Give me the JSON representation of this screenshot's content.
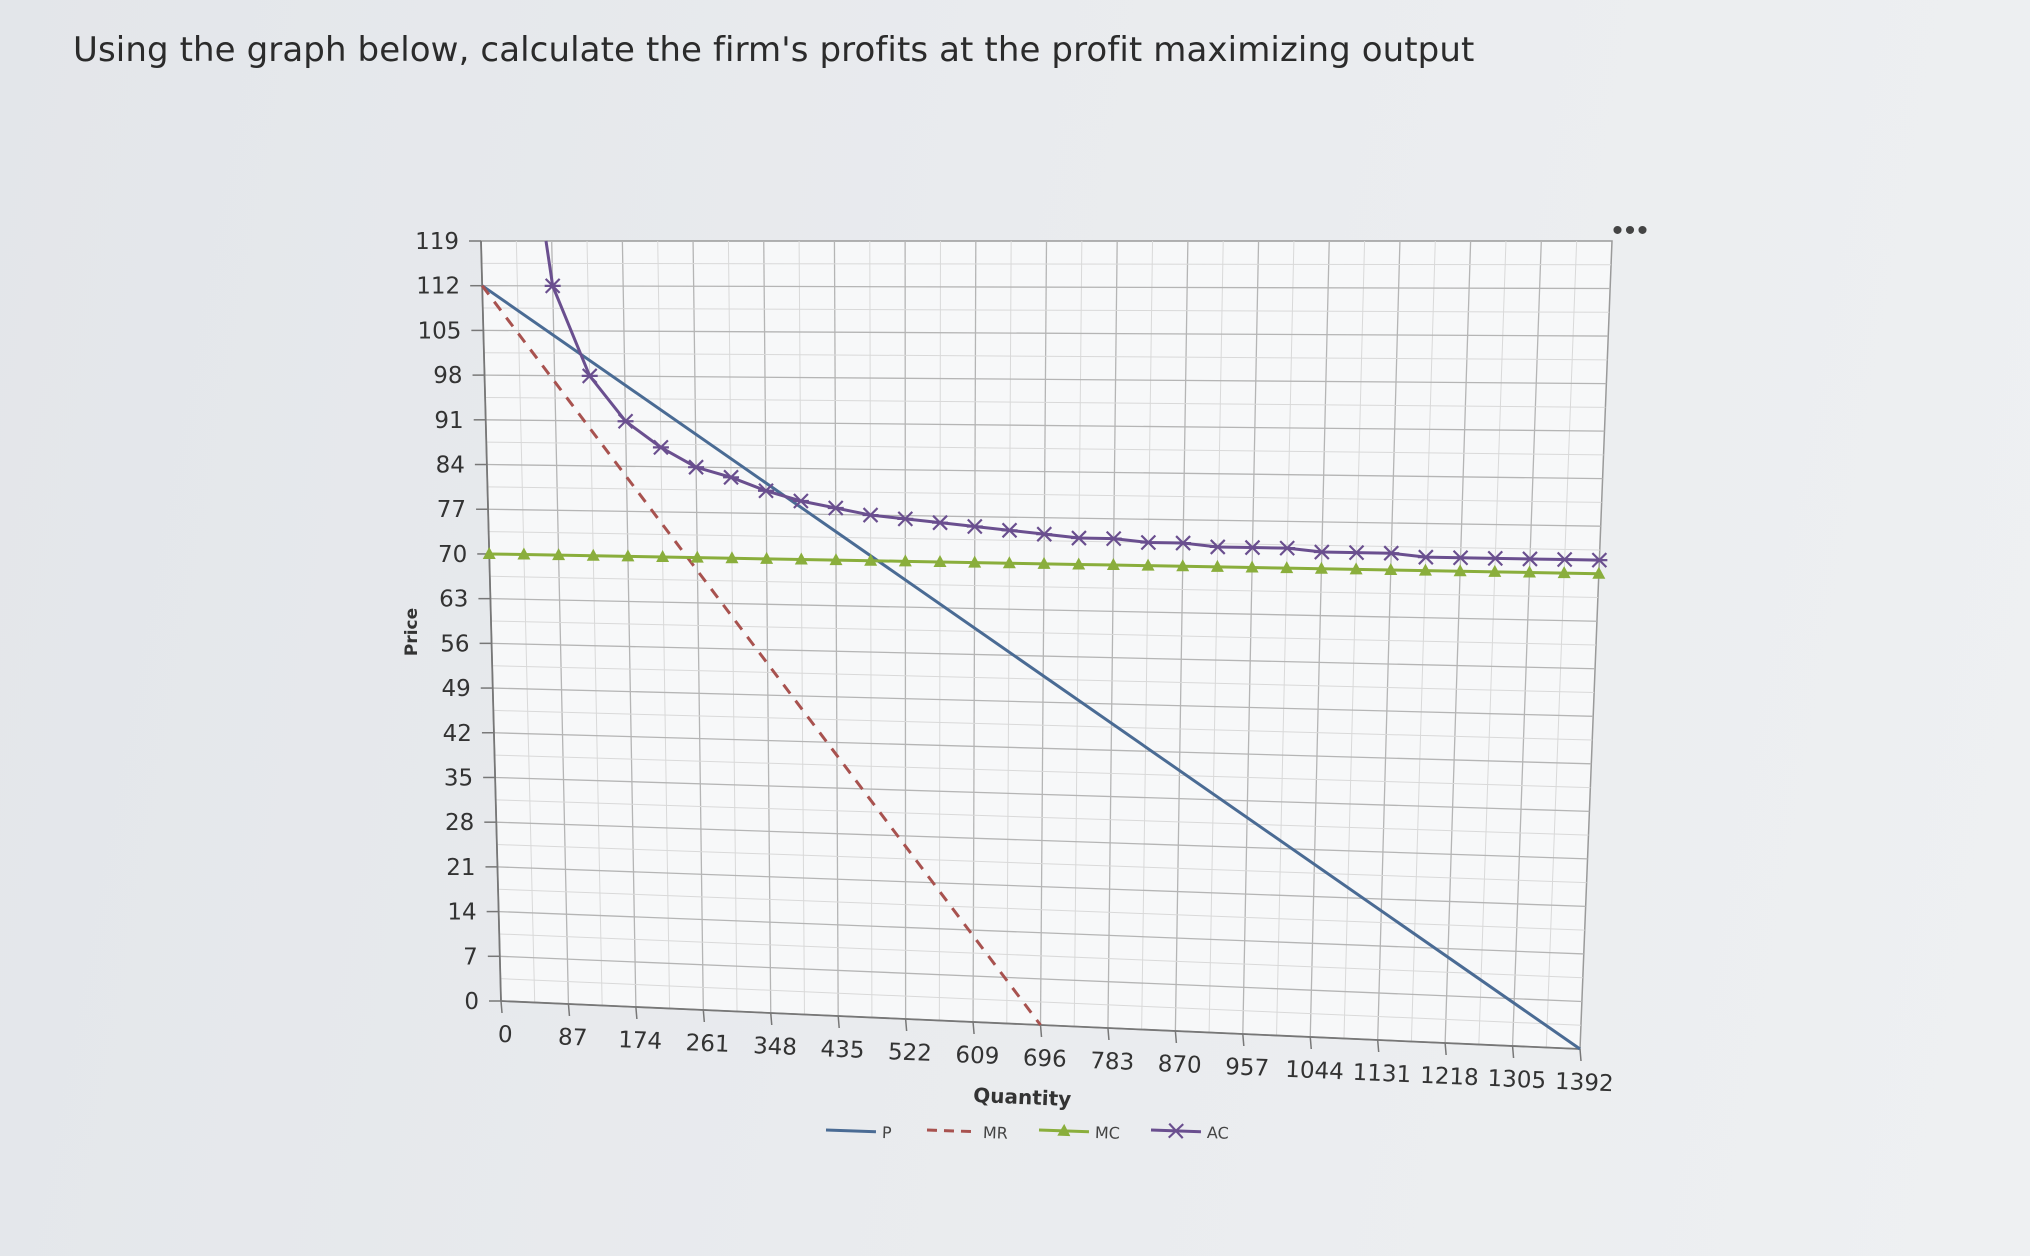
{
  "question": "Using the graph below, calculate the firm's profits at the profit maximizing output",
  "more_label": "•••",
  "chart_data": {
    "type": "line",
    "title": "",
    "xlabel": "Quantity",
    "ylabel": "Price",
    "xlim": [
      0,
      1392
    ],
    "ylim": [
      0,
      119
    ],
    "x_ticks": [
      "0",
      "87",
      "174",
      "261",
      "348",
      "435",
      "522",
      "609",
      "696",
      "783",
      "870",
      "957",
      "1044",
      "1131",
      "1218",
      "1305",
      "1392"
    ],
    "y_ticks": [
      "0",
      "7",
      "14",
      "21",
      "28",
      "35",
      "42",
      "49",
      "56",
      "63",
      "70",
      "77",
      "84",
      "91",
      "98",
      "105",
      "112",
      "119"
    ],
    "grid": true,
    "legend_position": "bottom",
    "series": [
      {
        "name": "P",
        "color": "#4a6b94",
        "style": "solid",
        "marker": "none",
        "x": [
          0,
          1392
        ],
        "y": [
          112,
          0
        ]
      },
      {
        "name": "MR",
        "color": "#a8524f",
        "style": "dashed",
        "marker": "none",
        "x": [
          0,
          696
        ],
        "y": [
          112,
          0
        ]
      },
      {
        "name": "MC",
        "color": "#8aae3c",
        "style": "solid",
        "marker": "triangle",
        "x": [
          0,
          43.5,
          87,
          130.5,
          174,
          217.5,
          261,
          304.5,
          348,
          391.5,
          435,
          478.5,
          522,
          565.5,
          609,
          652.5,
          696,
          739.5,
          783,
          826.5,
          870,
          913.5,
          957,
          1000.5,
          1044,
          1087.5,
          1131,
          1174.5,
          1218,
          1261.5,
          1305,
          1348.5,
          1392
        ],
        "y": [
          70,
          70,
          70,
          70,
          70,
          70,
          70,
          70,
          70,
          70,
          70,
          70,
          70,
          70,
          70,
          70,
          70,
          70,
          70,
          70,
          70,
          70,
          70,
          70,
          70,
          70,
          70,
          70,
          70,
          70,
          70,
          70,
          70
        ]
      },
      {
        "name": "AC",
        "color": "#6a4f8f",
        "style": "solid",
        "marker": "x",
        "x": [
          87,
          130.5,
          174,
          217.5,
          261,
          304.5,
          348,
          391.5,
          435,
          478.5,
          522,
          565.5,
          609,
          652.5,
          696,
          739.5,
          783,
          826.5,
          870,
          913.5,
          957,
          1000.5,
          1044,
          1087.5,
          1131,
          1174.5,
          1218,
          1261.5,
          1305,
          1348.5,
          1392
        ],
        "y": [
          112,
          98,
          91,
          87,
          84,
          82.5,
          80.5,
          79,
          78,
          77,
          76.5,
          76,
          75.5,
          75,
          74.5,
          74,
          74,
          73.5,
          73.5,
          73,
          73,
          73,
          72.5,
          72.5,
          72.5,
          72,
          72,
          72,
          72,
          72,
          72
        ]
      }
    ]
  }
}
